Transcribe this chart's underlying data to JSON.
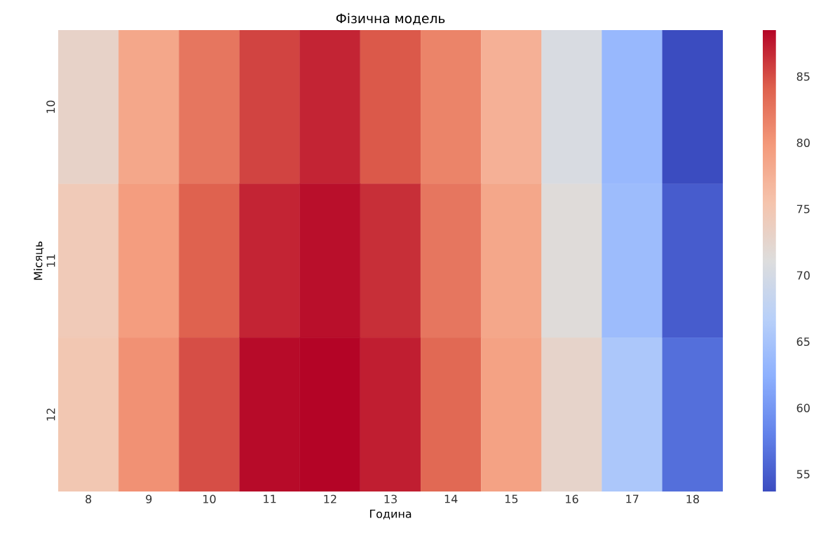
{
  "chart_data": {
    "type": "heatmap",
    "title": "Фізична модель",
    "xlabel": "Година",
    "ylabel": "Місяць",
    "categories": [
      "8",
      "9",
      "10",
      "11",
      "12",
      "13",
      "14",
      "15",
      "16",
      "17",
      "18"
    ],
    "y_categories": [
      "10",
      "11",
      "12"
    ],
    "cells": [
      [
        73,
        78.5,
        82.5,
        85.5,
        87,
        84.5,
        81.5,
        77.5,
        70.5,
        63.5,
        53.7
      ],
      [
        74.5,
        79.5,
        84,
        87,
        88,
        86.5,
        82.5,
        78.5,
        71.5,
        64,
        55
      ],
      [
        75,
        80.5,
        85,
        88.2,
        88.5,
        87.3,
        83.5,
        79,
        72.8,
        65.5,
        56.5
      ]
    ],
    "clim": [
      53.7,
      88.5
    ],
    "cticks": [
      55,
      60,
      65,
      70,
      75,
      80,
      85
    ]
  }
}
